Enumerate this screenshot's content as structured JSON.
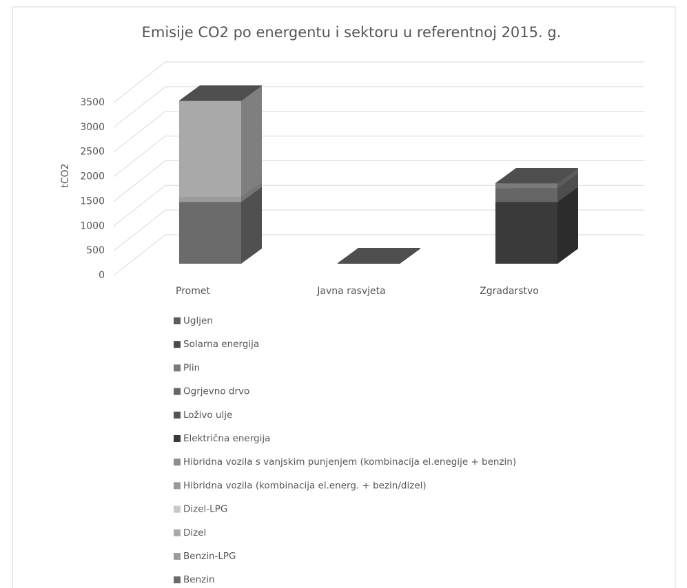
{
  "chart_data": {
    "type": "bar3d_stacked",
    "title": "Emisije CO2 po energentu i sektoru u referentnoj 2015. g.",
    "y_label": "tCO2",
    "categories": [
      "Promet",
      "Javna rasvjeta",
      "Zgradarstvo"
    ],
    "ylim": [
      0,
      3500
    ],
    "yticks": [
      0,
      500,
      1000,
      1500,
      2000,
      2500,
      3000,
      3500
    ],
    "grid": true,
    "legend": "bottom",
    "series": [
      {
        "name": "Benzin",
        "color": "#6b6b6b",
        "values": [
          1250,
          0,
          0
        ]
      },
      {
        "name": "Benzin-LPG",
        "color": "#9c9c9c",
        "values": [
          100,
          0,
          0
        ]
      },
      {
        "name": "Dizel",
        "color": "#a9a9a9",
        "values": [
          1950,
          0,
          0
        ]
      },
      {
        "name": "Dizel-LPG",
        "color": "#c9c9c9",
        "values": [
          0,
          0,
          0
        ]
      },
      {
        "name": "Hibridna vozila (kombinacija el.energ. + bezin/dizel)",
        "color": "#999999",
        "values": [
          0,
          0,
          0
        ]
      },
      {
        "name": "Hibridna vozila s vanjskim punjenjem (kombinacija el.enegije + benzin)",
        "color": "#8c8c8c",
        "values": [
          0,
          0,
          0
        ]
      },
      {
        "name": "Električna energija",
        "color": "#3a3a3a",
        "values": [
          0,
          10,
          1250
        ]
      },
      {
        "name": "Loživo ulje",
        "color": "#555555",
        "values": [
          0,
          0,
          0
        ]
      },
      {
        "name": "Ogrjevno drvo",
        "color": "#666666",
        "values": [
          0,
          0,
          280
        ]
      },
      {
        "name": "Plin",
        "color": "#7a7a7a",
        "values": [
          0,
          0,
          100
        ]
      },
      {
        "name": "Solarna energija",
        "color": "#4a4a4a",
        "values": [
          0,
          0,
          0
        ]
      },
      {
        "name": "Ugljen",
        "color": "#5c5c5c",
        "values": [
          0,
          0,
          0
        ]
      }
    ]
  }
}
